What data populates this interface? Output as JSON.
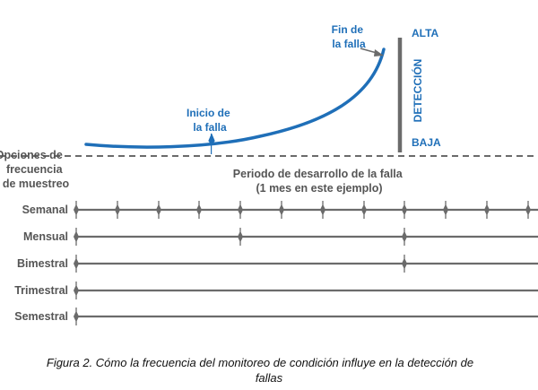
{
  "curve_labels": {
    "end": [
      "Fin de",
      "la falla"
    ],
    "start": [
      "Inicio de",
      "la falla"
    ]
  },
  "detection_axis": {
    "title": "DETECCIÓN",
    "high": "ALTA",
    "low": "BAJA"
  },
  "sampling_options_label": [
    "Opciones de",
    "frecuencia",
    "de muestreo"
  ],
  "period_label": [
    "Periodo de desarrollo de la falla",
    "(1 mes en este ejemplo)"
  ],
  "rows": [
    {
      "label": "Semanal"
    },
    {
      "label": "Mensual"
    },
    {
      "label": "Bimestral"
    },
    {
      "label": "Trimestral"
    },
    {
      "label": "Semestral"
    }
  ],
  "caption": [
    "Figura 2. Cómo la frecuencia del monitoreo de condición influye en la detección de",
    "fallas"
  ],
  "colors": {
    "curve": "#1f6fb8",
    "lines": "#6b6b6b",
    "gray_text": "#555555"
  }
}
